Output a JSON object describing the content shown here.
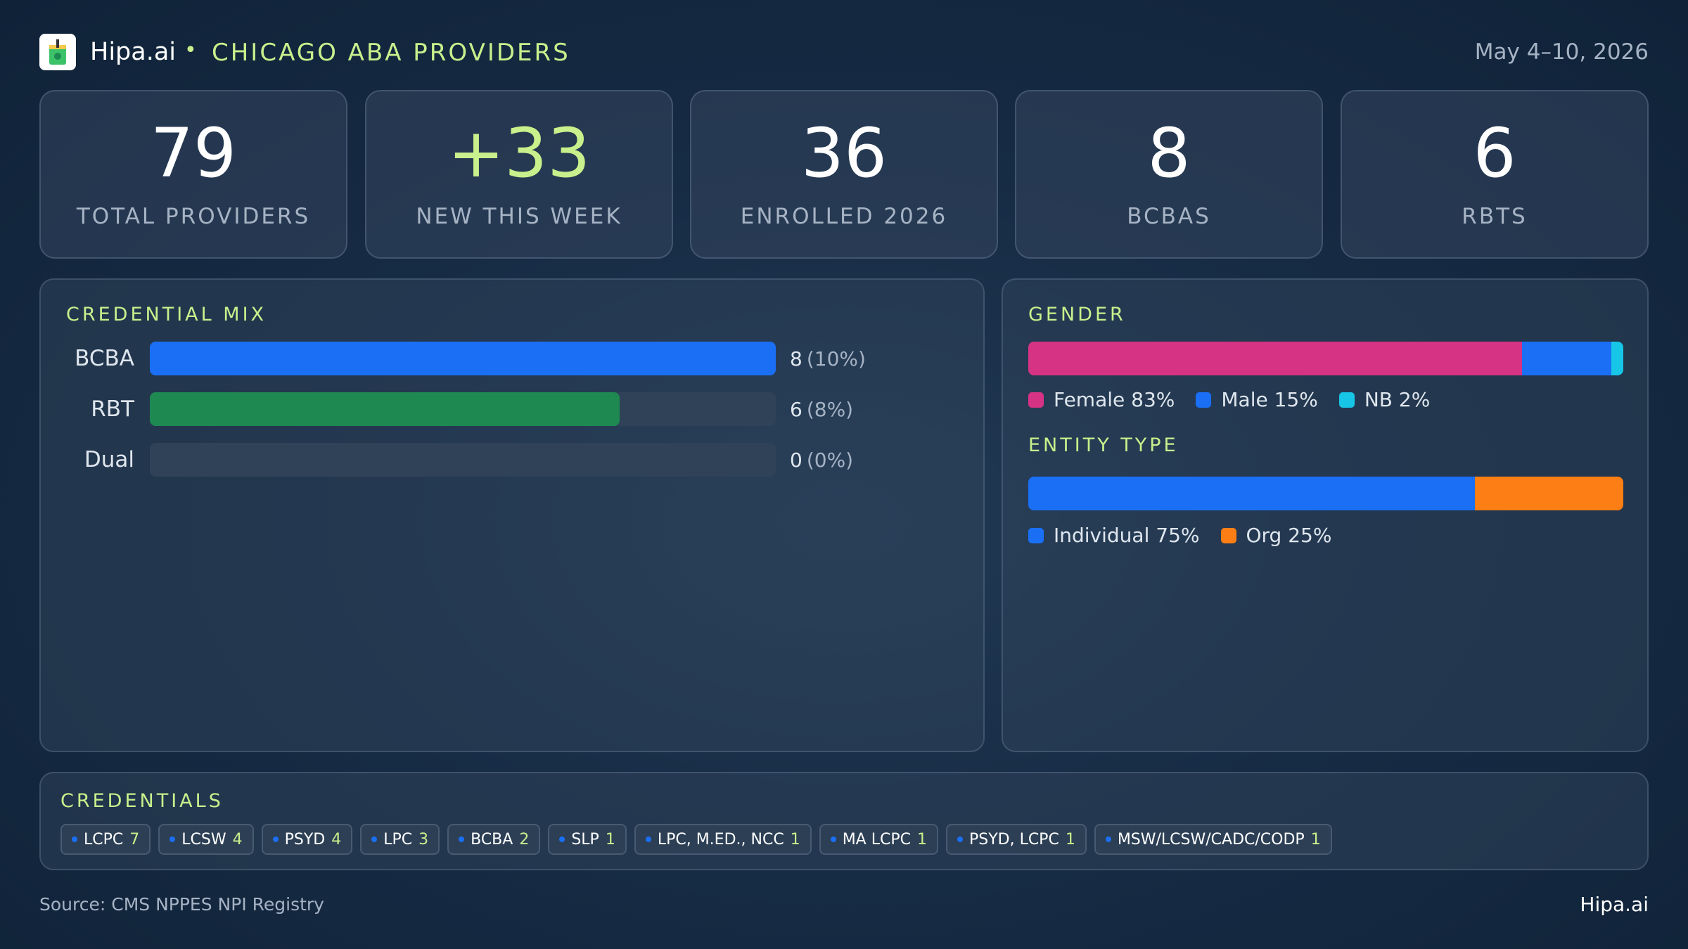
{
  "header": {
    "brand": "Hipa.ai",
    "separator": "•",
    "title": "CHICAGO ABA PROVIDERS",
    "date_range": "May 4–10, 2026",
    "logo_icon": "cup-icon"
  },
  "stats": [
    {
      "value": "79",
      "label": "TOTAL PROVIDERS"
    },
    {
      "value": "+33",
      "label": "NEW THIS WEEK"
    },
    {
      "value": "36",
      "label": "ENROLLED 2026"
    },
    {
      "value": "8",
      "label": "BCBAS"
    },
    {
      "value": "6",
      "label": "RBTS"
    }
  ],
  "credential_mix": {
    "title": "CREDENTIAL MIX",
    "rows": [
      {
        "label": "BCBA",
        "count": "8",
        "pct": "(10%)",
        "fill_fraction": 1.0,
        "color": "#1a6ff5"
      },
      {
        "label": "RBT",
        "count": "6",
        "pct": "(8%)",
        "fill_fraction": 0.75,
        "color": "#1e8a52"
      },
      {
        "label": "Dual",
        "count": "0",
        "pct": "(0%)",
        "fill_fraction": 0.0,
        "color": "#1a6ff5"
      }
    ]
  },
  "gender": {
    "title": "GENDER",
    "segments": [
      {
        "label": "Female 83%",
        "percent": 83,
        "color": "#d63384"
      },
      {
        "label": "Male 15%",
        "percent": 15,
        "color": "#1a6ff5"
      },
      {
        "label": "NB 2%",
        "percent": 2,
        "color": "#17c5e6"
      }
    ]
  },
  "entity_type": {
    "title": "ENTITY TYPE",
    "segments": [
      {
        "label": "Individual 75%",
        "percent": 75,
        "color": "#1a6ff5"
      },
      {
        "label": "Org 25%",
        "percent": 25,
        "color": "#fd7e14"
      }
    ]
  },
  "credentials": {
    "title": "CREDENTIALS",
    "chips": [
      {
        "label": "LCPC",
        "count": "7"
      },
      {
        "label": "LCSW",
        "count": "4"
      },
      {
        "label": "PSYD",
        "count": "4"
      },
      {
        "label": "LPC",
        "count": "3"
      },
      {
        "label": "BCBA",
        "count": "2"
      },
      {
        "label": "SLP",
        "count": "1"
      },
      {
        "label": "LPC, M.ED., NCC",
        "count": "1"
      },
      {
        "label": "MA LCPC",
        "count": "1"
      },
      {
        "label": "PSYD, LCPC",
        "count": "1"
      },
      {
        "label": "MSW/LCSW/CADC/CODP",
        "count": "1"
      }
    ]
  },
  "footer": {
    "source": "Source: CMS NPPES NPI Registry",
    "brand": "Hipa.ai"
  }
}
